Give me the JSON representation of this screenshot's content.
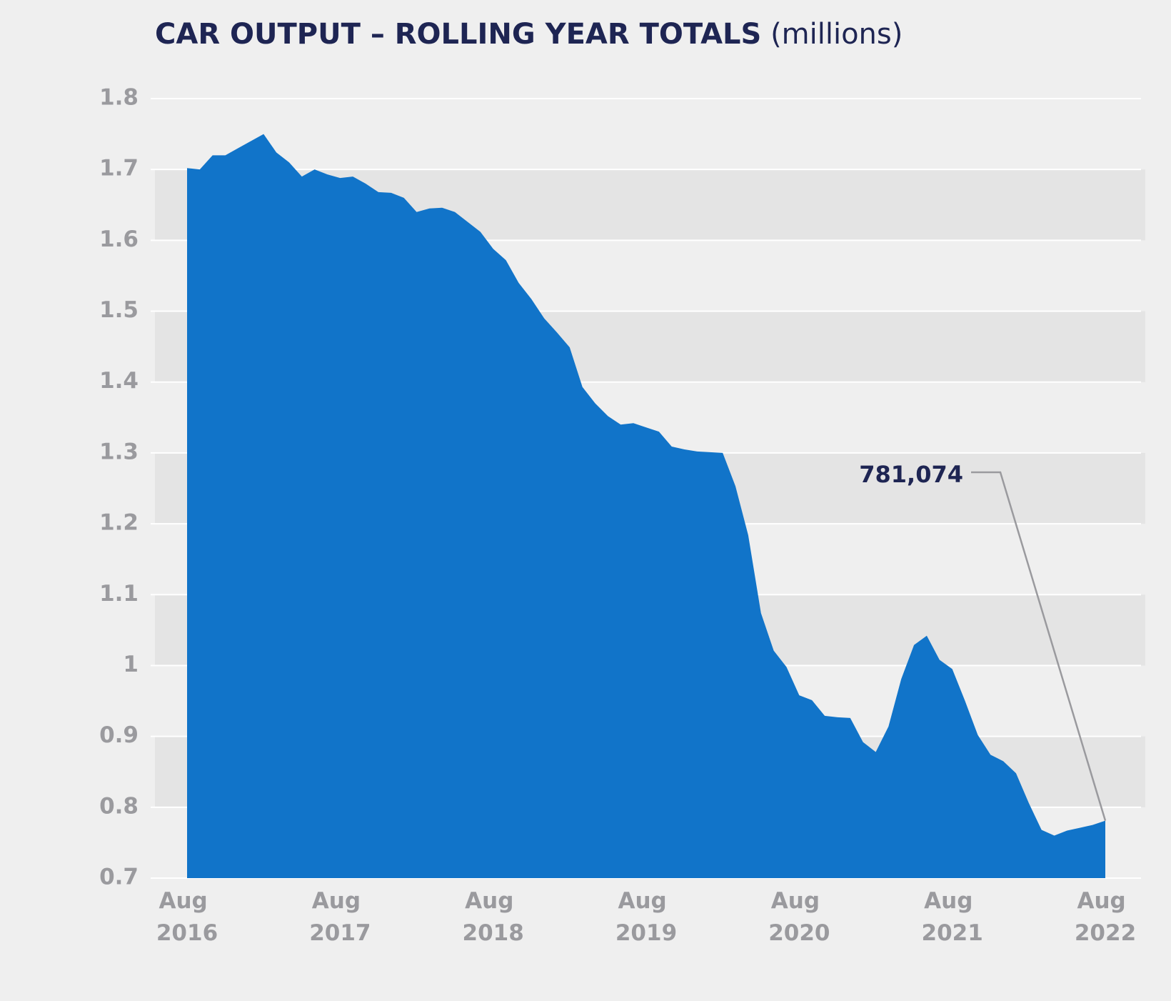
{
  "chart_data": {
    "type": "area",
    "title": "CAR OUTPUT – ROLLING YEAR TOTALS",
    "subtitle": "(millions)",
    "categories": [
      "Aug 2016",
      null,
      null,
      null,
      null,
      null,
      null,
      null,
      null,
      null,
      null,
      null,
      "Aug 2017",
      null,
      null,
      null,
      null,
      null,
      null,
      null,
      null,
      null,
      null,
      null,
      "Aug 2018",
      null,
      null,
      null,
      null,
      null,
      null,
      null,
      null,
      null,
      null,
      null,
      "Aug 2019",
      null,
      null,
      null,
      null,
      null,
      null,
      null,
      null,
      null,
      null,
      null,
      "Aug 2020",
      null,
      null,
      null,
      null,
      null,
      null,
      null,
      null,
      null,
      null,
      null,
      "Aug 2021",
      null,
      null,
      null,
      null,
      null,
      null,
      null,
      null,
      null,
      null,
      null,
      "Aug 2022"
    ],
    "values": [
      1.702,
      1.7,
      1.72,
      1.72,
      1.73,
      1.74,
      1.75,
      1.724,
      1.71,
      1.69,
      1.7,
      1.693,
      1.688,
      1.69,
      1.68,
      1.668,
      1.667,
      1.66,
      1.64,
      1.645,
      1.646,
      1.64,
      1.626,
      1.612,
      1.588,
      1.572,
      1.54,
      1.517,
      1.49,
      1.47,
      1.449,
      1.393,
      1.37,
      1.352,
      1.34,
      1.342,
      1.336,
      1.33,
      1.309,
      1.305,
      1.302,
      1.301,
      1.3,
      1.253,
      1.184,
      1.074,
      1.021,
      0.998,
      0.958,
      0.951,
      0.929,
      0.927,
      0.926,
      0.892,
      0.878,
      0.914,
      0.981,
      1.029,
      1.042,
      1.008,
      0.995,
      0.95,
      0.902,
      0.874,
      0.865,
      0.848,
      0.806,
      0.768,
      0.76,
      0.767,
      0.771,
      0.775,
      0.781074
    ],
    "color": "#1174c9",
    "ylim": [
      0.7,
      1.8
    ],
    "yticks": [
      0.7,
      0.8,
      0.9,
      1,
      1.1,
      1.2,
      1.3,
      1.4,
      1.5,
      1.6,
      1.7,
      1.8
    ],
    "grid": true,
    "annotations": [
      {
        "text": "781,074",
        "index": 72
      }
    ]
  }
}
